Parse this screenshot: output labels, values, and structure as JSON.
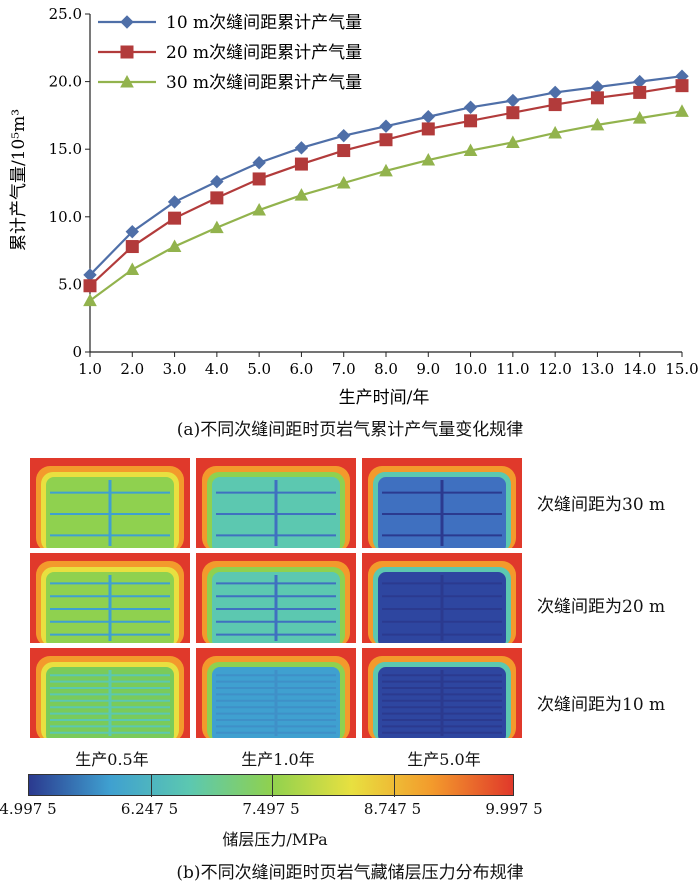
{
  "chart_data": {
    "type": "line",
    "title": "",
    "xlabel": "生产时间/年",
    "ylabel": "累计产气量/10⁵m³",
    "xlim": [
      1,
      15
    ],
    "ylim": [
      0,
      25
    ],
    "x_tick_labels": [
      "1.0",
      "2.0",
      "3.0",
      "4.0",
      "5.0",
      "6.0",
      "7.0",
      "8.0",
      "9.0",
      "10.0",
      "11.0",
      "12.0",
      "13.0",
      "14.0",
      "15.0"
    ],
    "y_tick_labels": [
      "0",
      "5.0",
      "10.0",
      "15.0",
      "20.0",
      "25.0"
    ],
    "y_ticks": [
      0,
      5,
      10,
      15,
      20,
      25
    ],
    "grid": false,
    "legend_position": "top-left",
    "x": [
      1,
      2,
      3,
      4,
      5,
      6,
      7,
      8,
      9,
      10,
      11,
      12,
      13,
      14,
      15
    ],
    "series": [
      {
        "name": "10 m次缝间距累计产气量",
        "marker": "diamond",
        "color": "#4f6fa8",
        "values": [
          5.7,
          8.9,
          11.1,
          12.6,
          14.0,
          15.1,
          16.0,
          16.7,
          17.4,
          18.1,
          18.6,
          19.2,
          19.6,
          20.0,
          20.4
        ]
      },
      {
        "name": "20 m次缝间距累计产气量",
        "marker": "square",
        "color": "#b23b3b",
        "values": [
          4.9,
          7.8,
          9.9,
          11.4,
          12.8,
          13.9,
          14.9,
          15.7,
          16.5,
          17.1,
          17.7,
          18.3,
          18.8,
          19.2,
          19.7
        ]
      },
      {
        "name": "30 m次缝间距累计产气量",
        "marker": "triangle",
        "color": "#92b34d",
        "values": [
          3.8,
          6.1,
          7.8,
          9.2,
          10.5,
          11.6,
          12.5,
          13.4,
          14.2,
          14.9,
          15.5,
          16.2,
          16.8,
          17.3,
          17.8
        ]
      }
    ]
  },
  "caption_a": "(a)不同次缝间距时页岩气累计产气量变化规律",
  "pressure_maps": {
    "row_labels": [
      "次缝间距为30 m",
      "次缝间距为20 m",
      "次缝间距为10 m"
    ],
    "column_labels": [
      "生产0.5年",
      "生产1.0年",
      "生产5.0年"
    ],
    "colorbar": {
      "title": "储层压力/MPa",
      "min": 4.9975,
      "max": 9.9975,
      "tick_values": [
        4.9975,
        6.2475,
        7.4975,
        8.7475,
        9.9975
      ],
      "tick_labels": [
        "4.997 5",
        "6.247 5",
        "7.497 5",
        "8.747 5",
        "9.997 5"
      ],
      "colors": [
        "#2b3a8f",
        "#3fa0d0",
        "#5cc8b0",
        "#8fd14f",
        "#e8e040",
        "#f39a2c",
        "#e0392b"
      ]
    }
  },
  "caption_b": "(b)不同次缝间距时页岩气藏储层压力分布规律"
}
